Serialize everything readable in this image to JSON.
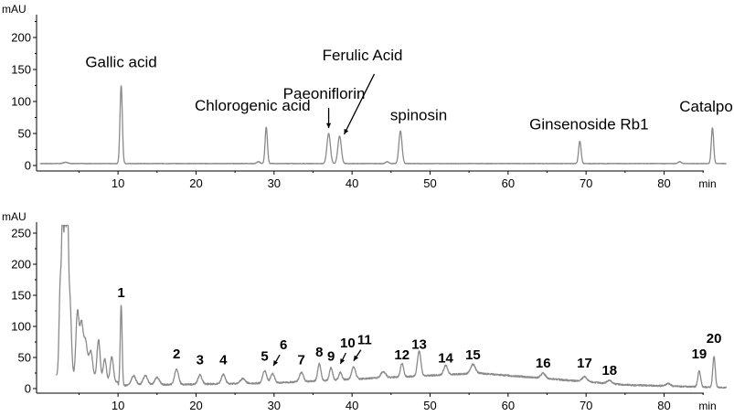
{
  "chart_data": [
    {
      "type": "line",
      "x_unit": "min",
      "y_unit": "mAU",
      "xlim": [
        0,
        88
      ],
      "ylim": [
        0,
        230
      ],
      "xticks": [
        10,
        20,
        30,
        40,
        50,
        60,
        70,
        80
      ],
      "yticks": [
        0,
        50,
        100,
        150,
        200
      ],
      "baseline": 3,
      "peaks": [
        {
          "x": 10.4,
          "y": 122,
          "w": 0.15
        },
        {
          "x": 29.0,
          "y": 57,
          "w": 0.15
        },
        {
          "x": 37.0,
          "y": 47,
          "w": 0.22
        },
        {
          "x": 38.4,
          "y": 43,
          "w": 0.22
        },
        {
          "x": 46.2,
          "y": 51,
          "w": 0.2
        },
        {
          "x": 69.2,
          "y": 35,
          "w": 0.16
        },
        {
          "x": 86.2,
          "y": 56,
          "w": 0.15
        },
        {
          "x": 3.3,
          "y": 2,
          "w": 0.3
        },
        {
          "x": 28.0,
          "y": 3,
          "w": 0.2
        },
        {
          "x": 44.5,
          "y": 3,
          "w": 0.2
        },
        {
          "x": 82.0,
          "y": 3,
          "w": 0.2
        }
      ],
      "annotations": [
        {
          "text": "Gallic acid",
          "x": 10.4,
          "y": 122
        },
        {
          "text": "Chlorogenic acid",
          "x": 29.0,
          "y": 57
        },
        {
          "text": "Paeoniflorin",
          "x": 37.0,
          "y": 47,
          "arrow": true
        },
        {
          "text": "Ferulic Acid",
          "x": 38.4,
          "y": 43,
          "arrow": true
        },
        {
          "text": "spinosin",
          "x": 46.2,
          "y": 51
        },
        {
          "text": "Ginsenoside Rb1",
          "x": 69.2,
          "y": 35
        },
        {
          "text": "Catalpol",
          "x": 86.2,
          "y": 56
        }
      ]
    },
    {
      "type": "line",
      "x_unit": "min",
      "y_unit": "mAU",
      "xlim": [
        0,
        88
      ],
      "ylim": [
        0,
        250
      ],
      "xticks": [
        10,
        20,
        30,
        40,
        50,
        60,
        70,
        80
      ],
      "yticks": [
        0,
        50,
        100,
        150,
        200,
        250
      ],
      "peaks": [
        {
          "x": 2.6,
          "y": 150,
          "w": 0.15
        },
        {
          "x": 2.9,
          "y": 250,
          "w": 0.12
        },
        {
          "x": 3.2,
          "y": 250,
          "w": 0.12
        },
        {
          "x": 3.5,
          "y": 250,
          "w": 0.12
        },
        {
          "x": 3.8,
          "y": 130,
          "w": 0.2
        },
        {
          "x": 4.8,
          "y": 105,
          "w": 0.2
        },
        {
          "x": 5.3,
          "y": 80,
          "w": 0.2
        },
        {
          "x": 5.8,
          "y": 60,
          "w": 0.25
        },
        {
          "x": 6.5,
          "y": 45,
          "w": 0.25
        },
        {
          "x": 7.5,
          "y": 65,
          "w": 0.2
        },
        {
          "x": 8.3,
          "y": 35,
          "w": 0.2
        },
        {
          "x": 9.2,
          "y": 40,
          "w": 0.2
        },
        {
          "x": 10.4,
          "y": 130,
          "w": 0.12
        },
        {
          "x": 12.0,
          "y": 15,
          "w": 0.3
        },
        {
          "x": 13.5,
          "y": 15,
          "w": 0.3
        },
        {
          "x": 15.0,
          "y": 12,
          "w": 0.3
        },
        {
          "x": 17.5,
          "y": 25,
          "w": 0.25
        },
        {
          "x": 20.5,
          "y": 15,
          "w": 0.25
        },
        {
          "x": 23.5,
          "y": 15,
          "w": 0.25
        },
        {
          "x": 26.0,
          "y": 8,
          "w": 0.3
        },
        {
          "x": 28.8,
          "y": 20,
          "w": 0.25
        },
        {
          "x": 29.8,
          "y": 15,
          "w": 0.25
        },
        {
          "x": 33.5,
          "y": 15,
          "w": 0.25
        },
        {
          "x": 35.8,
          "y": 28,
          "w": 0.2
        },
        {
          "x": 37.3,
          "y": 20,
          "w": 0.2
        },
        {
          "x": 38.5,
          "y": 12,
          "w": 0.2
        },
        {
          "x": 40.2,
          "y": 20,
          "w": 0.25
        },
        {
          "x": 44.0,
          "y": 10,
          "w": 0.3
        },
        {
          "x": 46.4,
          "y": 22,
          "w": 0.2
        },
        {
          "x": 48.6,
          "y": 40,
          "w": 0.22
        },
        {
          "x": 52.0,
          "y": 15,
          "w": 0.25
        },
        {
          "x": 55.5,
          "y": 15,
          "w": 0.3
        },
        {
          "x": 64.5,
          "y": 8,
          "w": 0.3
        },
        {
          "x": 69.8,
          "y": 8,
          "w": 0.3
        },
        {
          "x": 73.0,
          "y": 5,
          "w": 0.3
        },
        {
          "x": 80.5,
          "y": 4,
          "w": 0.3
        },
        {
          "x": 84.5,
          "y": 25,
          "w": 0.18
        },
        {
          "x": 86.4,
          "y": 50,
          "w": 0.16
        }
      ],
      "annotations": [
        {
          "text": "1",
          "x": 10.4,
          "y": 135
        },
        {
          "text": "2",
          "x": 17.5,
          "y": 37
        },
        {
          "text": "3",
          "x": 20.5,
          "y": 27
        },
        {
          "text": "4",
          "x": 23.5,
          "y": 27
        },
        {
          "text": "5",
          "x": 28.8,
          "y": 33
        },
        {
          "text": "6",
          "x": 29.8,
          "y": 22,
          "arrow": true
        },
        {
          "text": "7",
          "x": 33.5,
          "y": 27
        },
        {
          "text": "8",
          "x": 35.8,
          "y": 40
        },
        {
          "text": "9",
          "x": 37.3,
          "y": 33
        },
        {
          "text": "10",
          "x": 38.5,
          "y": 25,
          "arrow": true
        },
        {
          "text": "11",
          "x": 40.2,
          "y": 30,
          "arrow": true
        },
        {
          "text": "12",
          "x": 46.4,
          "y": 35
        },
        {
          "text": "13",
          "x": 48.6,
          "y": 52
        },
        {
          "text": "14",
          "x": 52.0,
          "y": 30
        },
        {
          "text": "15",
          "x": 55.5,
          "y": 35
        },
        {
          "text": "16",
          "x": 64.5,
          "y": 22
        },
        {
          "text": "17",
          "x": 69.8,
          "y": 22
        },
        {
          "text": "18",
          "x": 73.0,
          "y": 10
        },
        {
          "text": "19",
          "x": 84.5,
          "y": 37
        },
        {
          "text": "20",
          "x": 86.4,
          "y": 62
        }
      ]
    }
  ]
}
